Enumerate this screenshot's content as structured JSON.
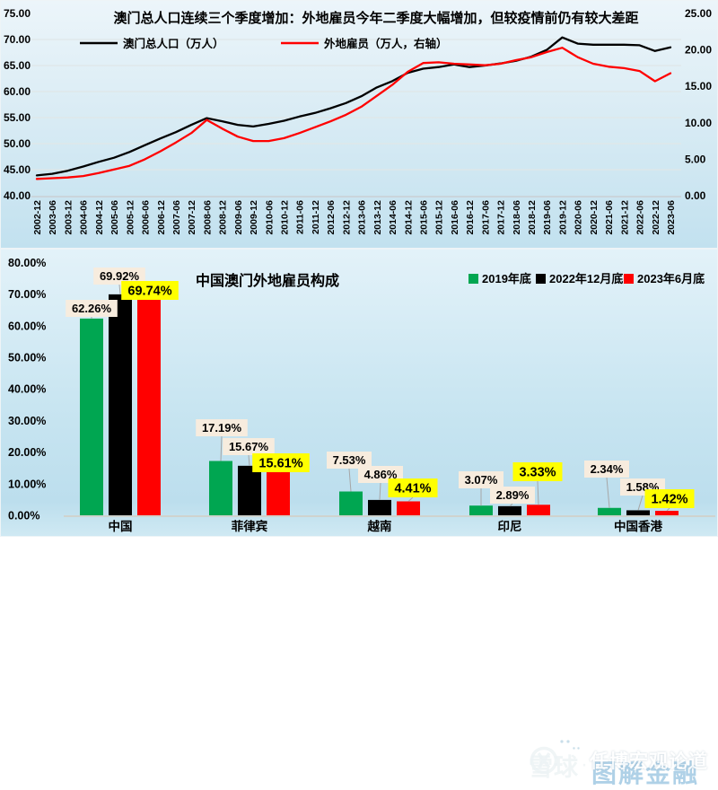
{
  "chart_data": [
    {
      "type": "line",
      "title": "澳门总人口连续三个季度增加：外地雇员今年二季度大幅增加，但较疫情前仍有较大差距",
      "x": [
        "2002-12",
        "2003-06",
        "2003-12",
        "2004-06",
        "2004-12",
        "2005-06",
        "2005-12",
        "2006-06",
        "2006-12",
        "2007-06",
        "2007-12",
        "2008-06",
        "2008-12",
        "2009-06",
        "2009-12",
        "2010-06",
        "2010-12",
        "2011-06",
        "2011-12",
        "2012-06",
        "2012-12",
        "2013-06",
        "2013-12",
        "2014-06",
        "2014-12",
        "2015-06",
        "2015-12",
        "2016-06",
        "2016-12",
        "2017-06",
        "2017-12",
        "2018-06",
        "2018-12",
        "2019-06",
        "2019-12",
        "2020-06",
        "2020-12",
        "2021-06",
        "2021-12",
        "2022-06",
        "2022-12",
        "2023-06"
      ],
      "series": [
        {
          "name": "澳门总人口（万人）",
          "axis": "left",
          "color": "#000000",
          "values": [
            43.9,
            44.2,
            44.8,
            45.6,
            46.5,
            47.3,
            48.4,
            49.7,
            51.0,
            52.2,
            53.6,
            54.9,
            54.3,
            53.6,
            53.3,
            53.8,
            54.4,
            55.2,
            55.9,
            56.8,
            57.8,
            59.1,
            60.8,
            62.0,
            63.6,
            64.4,
            64.7,
            65.2,
            64.7,
            65.0,
            65.4,
            65.9,
            66.7,
            68.0,
            70.4,
            69.2,
            69.0,
            69.0,
            69.0,
            68.9,
            67.8,
            68.5
          ]
        },
        {
          "name": "外地雇员（万人，右轴）",
          "axis": "right",
          "color": "#FF0000",
          "values": [
            2.3,
            2.4,
            2.5,
            2.7,
            3.1,
            3.6,
            4.1,
            5.0,
            6.1,
            7.3,
            8.6,
            10.4,
            9.2,
            8.1,
            7.5,
            7.5,
            7.9,
            8.6,
            9.4,
            10.2,
            11.1,
            12.2,
            13.7,
            15.2,
            17.0,
            18.2,
            18.3,
            18.1,
            18.0,
            17.9,
            18.1,
            18.6,
            19.0,
            19.7,
            20.3,
            19.0,
            18.1,
            17.7,
            17.5,
            17.1,
            15.7,
            16.8
          ]
        }
      ],
      "left_axis": {
        "min": 40,
        "max": 75,
        "ticks": [
          "75.00",
          "70.00",
          "65.00",
          "60.00",
          "55.00",
          "50.00",
          "45.00",
          "40.00"
        ]
      },
      "right_axis": {
        "min": 0,
        "max": 25,
        "ticks": [
          "25.00",
          "20.00",
          "15.00",
          "10.00",
          "5.00",
          "0.00"
        ]
      },
      "grid": "horizontal"
    },
    {
      "type": "bar",
      "title": "中国澳门外地雇员构成",
      "categories": [
        "中国",
        "菲律宾",
        "越南",
        "印尼",
        "中国香港"
      ],
      "series": [
        {
          "name": "2019年底",
          "color": "#00A651",
          "values": [
            62.26,
            17.19,
            7.53,
            3.07,
            2.34
          ],
          "labels": [
            "62.26%",
            "17.19%",
            "7.53%",
            "3.07%",
            "2.34%"
          ]
        },
        {
          "name": "2022年12月底",
          "color": "#000000",
          "values": [
            69.92,
            15.67,
            4.86,
            2.89,
            1.58
          ],
          "labels": [
            "69.92%",
            "15.67%",
            "4.86%",
            "2.89%",
            "1.58%"
          ]
        },
        {
          "name": "2023年6月底",
          "color": "#FF0000",
          "values": [
            69.74,
            15.61,
            4.41,
            3.33,
            1.42
          ],
          "labels": [
            "69.74%",
            "15.61%",
            "4.41%",
            "3.33%",
            "1.42%"
          ]
        }
      ],
      "ylim": [
        0,
        80
      ],
      "yticks": [
        "80.00%",
        "70.00%",
        "60.00%",
        "50.00%",
        "40.00%",
        "30.00%",
        "20.00%",
        "10.00%",
        "0.00%"
      ],
      "label_bg_default": "#F7ECDE",
      "label_bg_highlight": "#FFFF00",
      "legend_position": "top-right",
      "grid": "off"
    }
  ],
  "watermark": {
    "site": "雪球",
    "separator": "·",
    "text_white": "任博宏观论道",
    "text_blue": "图解金融",
    "icons": [
      "wechat-icon",
      "xueqiu-logo-icon"
    ]
  }
}
